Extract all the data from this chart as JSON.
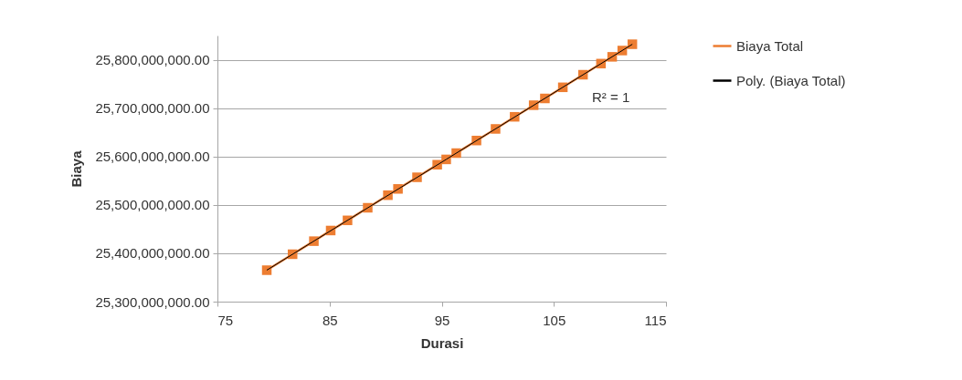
{
  "chart_data": {
    "type": "line",
    "xlabel": "Durasi",
    "ylabel": "Biaya",
    "annotations": [
      "R² = 1"
    ],
    "xlim": [
      75,
      115
    ],
    "xticks": [
      75,
      85,
      95,
      105,
      115
    ],
    "ylim": [
      25300000000,
      25850000000
    ],
    "yticks": [
      {
        "value": 25300000000,
        "label": "25,300,000,000.00"
      },
      {
        "value": 25400000000,
        "label": "25,400,000,000.00"
      },
      {
        "value": 25500000000,
        "label": "25,500,000,000.00"
      },
      {
        "value": 25600000000,
        "label": "25,600,000,000.00"
      },
      {
        "value": 25700000000,
        "label": "25,700,000,000.00"
      },
      {
        "value": 25800000000,
        "label": "25,800,000,000.00"
      }
    ],
    "grid": "y",
    "legend": "right",
    "marker": "square",
    "series": [
      {
        "name": "Biaya Total",
        "color": "#ed7d31",
        "x": [
          79.4,
          81.7,
          83.6,
          85.1,
          86.6,
          88.4,
          90.2,
          91.1,
          92.8,
          94.6,
          95.4,
          96.3,
          98.1,
          99.8,
          101.5,
          103.2,
          104.2,
          105.8,
          107.6,
          109.2,
          110.2,
          111.1,
          112.0
        ],
        "values": [
          25365000000,
          25398000000,
          25425000000,
          25447000000,
          25468000000,
          25494000000,
          25520000000,
          25533000000,
          25557000000,
          25583000000,
          25594000000,
          25607000000,
          25633000000,
          25657000000,
          25682000000,
          25706000000,
          25720000000,
          25743000000,
          25769000000,
          25792000000,
          25806000000,
          25819000000,
          25832000000
        ]
      },
      {
        "name": "Poly. (Biaya Total)",
        "color": "#000000",
        "type": "line",
        "marker": "none",
        "line_style": "solid",
        "x": [
          79.4,
          95.4,
          112.0
        ],
        "values": [
          25365000000,
          25594000000,
          25832000000
        ]
      }
    ]
  }
}
